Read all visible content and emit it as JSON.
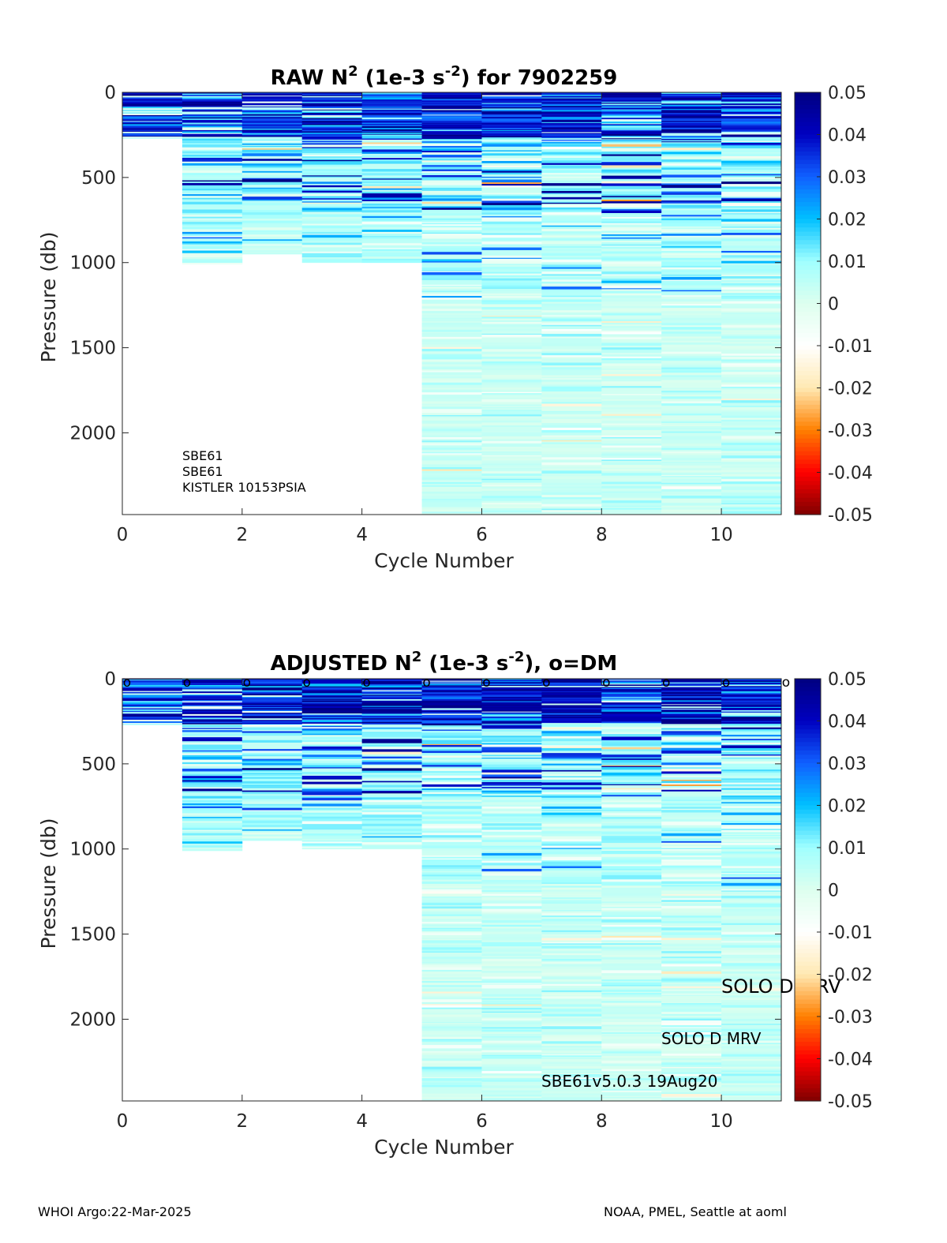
{
  "figure": {
    "footer_left": "WHOI Argo:22-Mar-2025",
    "footer_right": "NOAA, PMEL, Seattle at aoml"
  },
  "colors": {
    "colormap": [
      "#800000",
      "#ff0000",
      "#ff8000",
      "#ffe9b3",
      "#ffffff",
      "#ddffee",
      "#a0ffff",
      "#00c0ff",
      "#1060ff",
      "#0000c0",
      "#000080"
    ],
    "frame": "#262626"
  },
  "chart_data": [
    {
      "type": "heatmap",
      "title_main": "RAW N",
      "title_sup1": "2",
      "title_mid": " (1e-3 s",
      "title_sup2": "-2",
      "title_tail": ") for 7902259",
      "xlabel": "Cycle Number",
      "ylabel": "Pressure (db)",
      "xlim": [
        0,
        11
      ],
      "ylim": [
        0,
        2480
      ],
      "y_reversed": true,
      "xticks": [
        0,
        2,
        4,
        6,
        8,
        10
      ],
      "yticks": [
        0,
        500,
        1000,
        1500,
        2000
      ],
      "colorbar": {
        "lim": [
          -0.05,
          0.05
        ],
        "ticks": [
          "0.05",
          "0.04",
          "0.03",
          "0.02",
          "0.01",
          "0",
          "-0.01",
          "-0.02",
          "-0.03",
          "-0.04",
          "-0.05"
        ]
      },
      "profiles": [
        {
          "cycle": 0,
          "max_pressure": 270
        },
        {
          "cycle": 1,
          "max_pressure": 1010
        },
        {
          "cycle": 2,
          "max_pressure": 950
        },
        {
          "cycle": 3,
          "max_pressure": 1000
        },
        {
          "cycle": 4,
          "max_pressure": 1000
        },
        {
          "cycle": 5,
          "max_pressure": 2480
        },
        {
          "cycle": 6,
          "max_pressure": 2480
        },
        {
          "cycle": 7,
          "max_pressure": 2480
        },
        {
          "cycle": 8,
          "max_pressure": 2480
        },
        {
          "cycle": 9,
          "max_pressure": 2480
        },
        {
          "cycle": 10,
          "max_pressure": 2480
        }
      ],
      "annotations": [
        "SBE61",
        "SBE61",
        "KISTLER 10153PSIA"
      ],
      "dm_markers": []
    },
    {
      "type": "heatmap",
      "title_main": "ADJUSTED N",
      "title_sup1": "2",
      "title_mid": " (1e-3 s",
      "title_sup2": "-2",
      "title_tail": "), o=DM",
      "xlabel": "Cycle Number",
      "ylabel": "Pressure (db)",
      "xlim": [
        0,
        11
      ],
      "ylim": [
        0,
        2480
      ],
      "y_reversed": true,
      "xticks": [
        0,
        2,
        4,
        6,
        8,
        10
      ],
      "yticks": [
        0,
        500,
        1000,
        1500,
        2000
      ],
      "colorbar": {
        "lim": [
          -0.05,
          0.05
        ],
        "ticks": [
          "0.05",
          "0.04",
          "0.03",
          "0.02",
          "0.01",
          "0",
          "-0.01",
          "-0.02",
          "-0.03",
          "-0.04",
          "-0.05"
        ]
      },
      "profiles": [
        {
          "cycle": 0,
          "max_pressure": 270
        },
        {
          "cycle": 1,
          "max_pressure": 1010
        },
        {
          "cycle": 2,
          "max_pressure": 950
        },
        {
          "cycle": 3,
          "max_pressure": 1000
        },
        {
          "cycle": 4,
          "max_pressure": 1000
        },
        {
          "cycle": 5,
          "max_pressure": 2480
        },
        {
          "cycle": 6,
          "max_pressure": 2480
        },
        {
          "cycle": 7,
          "max_pressure": 2480
        },
        {
          "cycle": 8,
          "max_pressure": 2480
        },
        {
          "cycle": 9,
          "max_pressure": 2480
        },
        {
          "cycle": 10,
          "max_pressure": 2480
        }
      ],
      "annotations": [
        "SOLO D MRV",
        "SOLO D MRV",
        "SBE61v5.0.3 19Aug20"
      ],
      "dm_marker_symbol": "o",
      "dm_markers": [
        0,
        1,
        2,
        3,
        4,
        5,
        6,
        7,
        8,
        9,
        10,
        11
      ]
    }
  ]
}
